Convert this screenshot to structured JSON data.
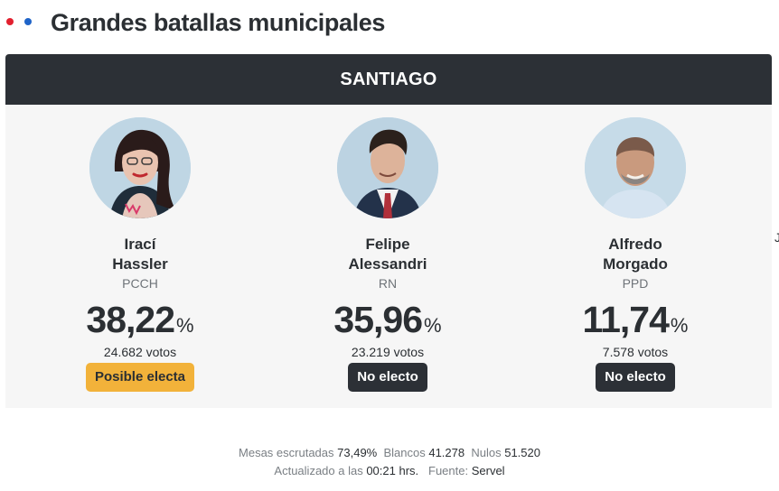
{
  "header": {
    "title": "Grandes batallas municipales",
    "colors": {
      "dot_red": "#e2202f",
      "dot_blue": "#1f64c8"
    }
  },
  "race": {
    "commune": "SANTIAGO",
    "candidates": [
      {
        "first_name": "Irací",
        "last_name": "Hassler",
        "party": "PCCH",
        "percent": "38,22",
        "percent_sign": "%",
        "votes": "24.682 votos",
        "status": "Posible electa",
        "status_color": "#f2b23a"
      },
      {
        "first_name": "Felipe",
        "last_name": "Alessandri",
        "party": "RN",
        "percent": "35,96",
        "percent_sign": "%",
        "votes": "23.219 votos",
        "status": "No electo",
        "status_color": "#2c3036"
      },
      {
        "first_name": "Alfredo",
        "last_name": "Morgado",
        "party": "PPD",
        "percent": "11,74",
        "percent_sign": "%",
        "votes": "7.578 votos",
        "status": "No electo",
        "status_color": "#2c3036"
      }
    ]
  },
  "footer": {
    "mesas_label": "Mesas escrutadas",
    "mesas_value": "73,49%",
    "blancos_label": "Blancos",
    "blancos_value": "41.278",
    "nulos_label": "Nulos",
    "nulos_value": "51.520",
    "updated_label": "Actualizado a las",
    "updated_value": "00:21 hrs.",
    "source_label": "Fuente:",
    "source_value": "Servel"
  },
  "edge_mark": "Ј"
}
